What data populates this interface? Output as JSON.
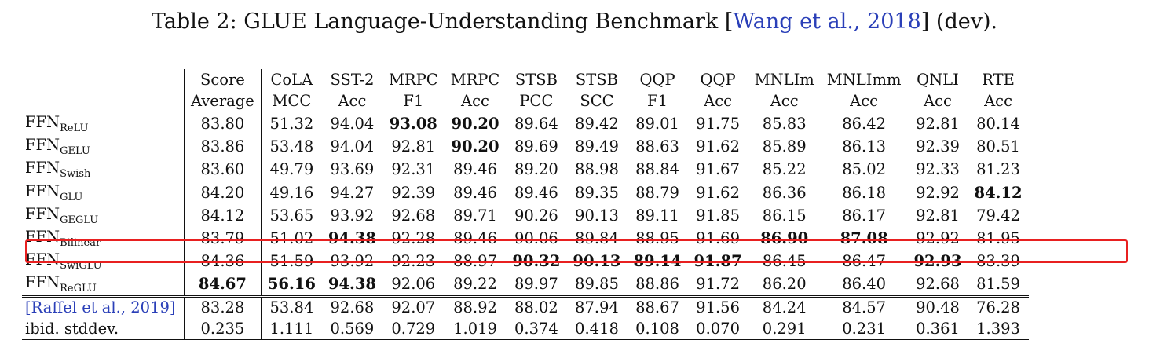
{
  "caption": {
    "prefix": "Table 2:  GLUE Language-Understanding Benchmark ",
    "bracket_open": "[",
    "cite": "Wang et al., 2018",
    "bracket_close": "]",
    "suffix": " (dev)."
  },
  "columns": [
    {
      "top": "Score",
      "bottom": "Average"
    },
    {
      "top": "CoLA",
      "bottom": "MCC"
    },
    {
      "top": "SST-2",
      "bottom": "Acc"
    },
    {
      "top": "MRPC",
      "bottom": "F1"
    },
    {
      "top": "MRPC",
      "bottom": "Acc"
    },
    {
      "top": "STSB",
      "bottom": "PCC"
    },
    {
      "top": "STSB",
      "bottom": "SCC"
    },
    {
      "top": "QQP",
      "bottom": "F1"
    },
    {
      "top": "QQP",
      "bottom": "Acc"
    },
    {
      "top": "MNLIm",
      "bottom": "Acc"
    },
    {
      "top": "MNLImm",
      "bottom": "Acc"
    },
    {
      "top": "QNLI",
      "bottom": "Acc"
    },
    {
      "top": "RTE",
      "bottom": "Acc"
    }
  ],
  "rows": [
    {
      "name": "FFN",
      "sub": "ReLU",
      "values": [
        "83.80",
        "51.32",
        "94.04",
        "93.08",
        "90.20",
        "89.64",
        "89.42",
        "89.01",
        "91.75",
        "85.83",
        "86.42",
        "92.81",
        "80.14"
      ],
      "bold": [
        3,
        4
      ]
    },
    {
      "name": "FFN",
      "sub": "GELU",
      "values": [
        "83.86",
        "53.48",
        "94.04",
        "92.81",
        "90.20",
        "89.69",
        "89.49",
        "88.63",
        "91.62",
        "85.89",
        "86.13",
        "92.39",
        "80.51"
      ],
      "bold": [
        4
      ]
    },
    {
      "name": "FFN",
      "sub": "Swish",
      "values": [
        "83.60",
        "49.79",
        "93.69",
        "92.31",
        "89.46",
        "89.20",
        "88.98",
        "88.84",
        "91.67",
        "85.22",
        "85.02",
        "92.33",
        "81.23"
      ],
      "bold": []
    },
    {
      "name": "FFN",
      "sub": "GLU",
      "values": [
        "84.20",
        "49.16",
        "94.27",
        "92.39",
        "89.46",
        "89.46",
        "89.35",
        "88.79",
        "91.62",
        "86.36",
        "86.18",
        "92.92",
        "84.12"
      ],
      "bold": [
        12
      ]
    },
    {
      "name": "FFN",
      "sub": "GEGLU",
      "values": [
        "84.12",
        "53.65",
        "93.92",
        "92.68",
        "89.71",
        "90.26",
        "90.13",
        "89.11",
        "91.85",
        "86.15",
        "86.17",
        "92.81",
        "79.42"
      ],
      "bold": []
    },
    {
      "name": "FFN",
      "sub": "Bilinear",
      "values": [
        "83.79",
        "51.02",
        "94.38",
        "92.28",
        "89.46",
        "90.06",
        "89.84",
        "88.95",
        "91.69",
        "86.90",
        "87.08",
        "92.92",
        "81.95"
      ],
      "bold": [
        2,
        9,
        10
      ]
    },
    {
      "name": "FFN",
      "sub": "SwiGLU",
      "values": [
        "84.36",
        "51.59",
        "93.92",
        "92.23",
        "88.97",
        "90.32",
        "90.13",
        "89.14",
        "91.87",
        "86.45",
        "86.47",
        "92.93",
        "83.39"
      ],
      "bold": [
        5,
        6,
        7,
        8,
        11
      ],
      "highlighted": true
    },
    {
      "name": "FFN",
      "sub": "ReGLU",
      "values": [
        "84.67",
        "56.16",
        "94.38",
        "92.06",
        "89.22",
        "89.97",
        "89.85",
        "88.86",
        "91.72",
        "86.20",
        "86.40",
        "92.68",
        "81.59"
      ],
      "bold": [
        0,
        1,
        2
      ]
    },
    {
      "name": "[Raffel et al., 2019]",
      "sub": "",
      "cite": true,
      "values": [
        "83.28",
        "53.84",
        "92.68",
        "92.07",
        "88.92",
        "88.02",
        "87.94",
        "88.67",
        "91.56",
        "84.24",
        "84.57",
        "90.48",
        "76.28"
      ],
      "bold": []
    },
    {
      "name": "ibid. stddev.",
      "sub": "",
      "values": [
        "0.235",
        "1.111",
        "0.569",
        "0.729",
        "1.019",
        "0.374",
        "0.418",
        "0.108",
        "0.070",
        "0.291",
        "0.231",
        "0.361",
        "1.393"
      ],
      "bold": []
    }
  ],
  "colors": {
    "highlight_box": "#e82020",
    "citation": "#2a3fb8"
  }
}
